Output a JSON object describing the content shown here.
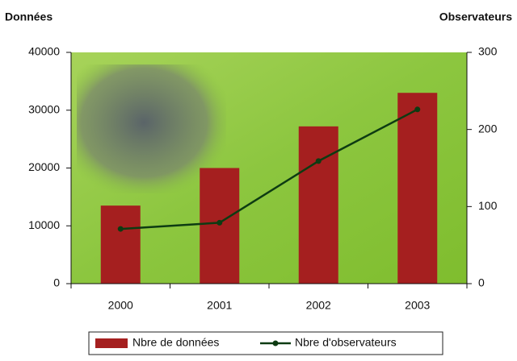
{
  "chart_data": {
    "type": "bar",
    "y_title": "Données",
    "y2_title": "Observateurs",
    "categories": [
      "2000",
      "2001",
      "2002",
      "2003"
    ],
    "series": [
      {
        "name": "Nbre de données",
        "type": "bar",
        "color": "#a51f1f",
        "values": [
          13500,
          20000,
          27200,
          33000
        ]
      },
      {
        "name": "Nbre d'observateurs",
        "type": "line",
        "color": "#0d3b12",
        "axis": "y2",
        "values": [
          71,
          79,
          159,
          226
        ]
      }
    ],
    "ylim": [
      0,
      40000
    ],
    "yticks": [
      0,
      10000,
      20000,
      30000,
      40000
    ],
    "y2lim": [
      0,
      300
    ],
    "y2ticks": [
      0,
      100,
      200,
      300
    ]
  }
}
